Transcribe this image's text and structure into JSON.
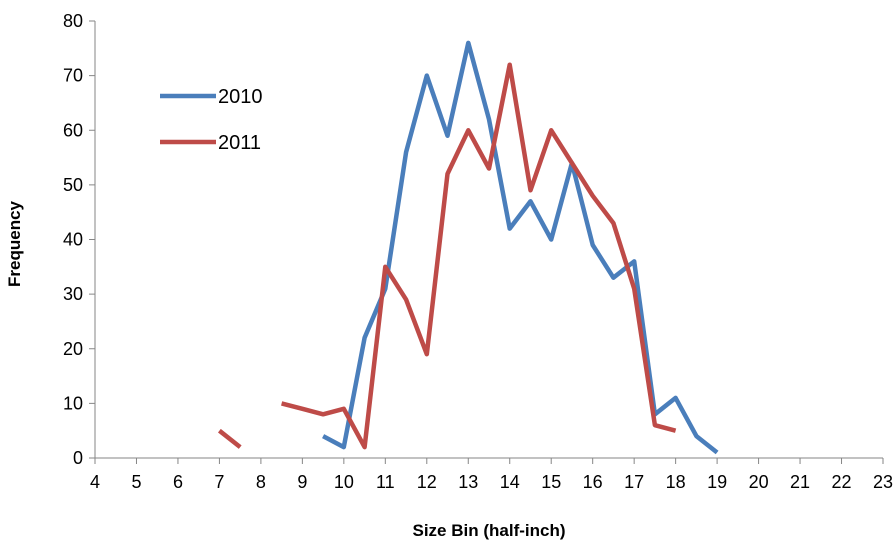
{
  "chart_data": {
    "type": "line",
    "title": "",
    "xlabel": "Size Bin (half-inch)",
    "ylabel": "Frequency",
    "xlim": [
      4,
      23
    ],
    "ylim": [
      0,
      80
    ],
    "x_ticks": [
      "4",
      "5",
      "6",
      "7",
      "8",
      "9",
      "10",
      "11",
      "12",
      "13",
      "14",
      "15",
      "16",
      "17",
      "18",
      "19",
      "20",
      "21",
      "22",
      "23"
    ],
    "y_ticks": [
      "0",
      "10",
      "20",
      "30",
      "40",
      "50",
      "60",
      "70",
      "80"
    ],
    "grid": false,
    "legend_position": "upper-left",
    "series": [
      {
        "name": "2010",
        "color": "#4a7ebb",
        "x": [
          9.5,
          10,
          10.5,
          11,
          11.5,
          12,
          12.5,
          13,
          13.5,
          14,
          14.5,
          15,
          15.5,
          16,
          16.5,
          17,
          17.5,
          18,
          18.5,
          19
        ],
        "y": [
          4,
          2,
          22,
          31,
          56,
          70,
          59,
          76,
          62,
          42,
          47,
          40,
          54,
          39,
          33,
          36,
          8,
          11,
          4,
          1
        ]
      },
      {
        "name": "2011",
        "color": "#be4b48",
        "segments": [
          {
            "x": [
              7,
              7.5
            ],
            "y": [
              5,
              2
            ]
          },
          {
            "x": [
              8.5,
              9,
              9.5,
              10,
              10.5,
              11,
              11.5,
              12,
              12.5,
              13,
              13.5,
              14,
              14.5,
              15,
              15.5,
              16,
              16.5,
              17,
              17.5,
              18
            ],
            "y": [
              10,
              9,
              8,
              9,
              2,
              35,
              29,
              19,
              52,
              60,
              53,
              72,
              49,
              60,
              54,
              48,
              43,
              31,
              6,
              5
            ]
          }
        ]
      }
    ]
  }
}
